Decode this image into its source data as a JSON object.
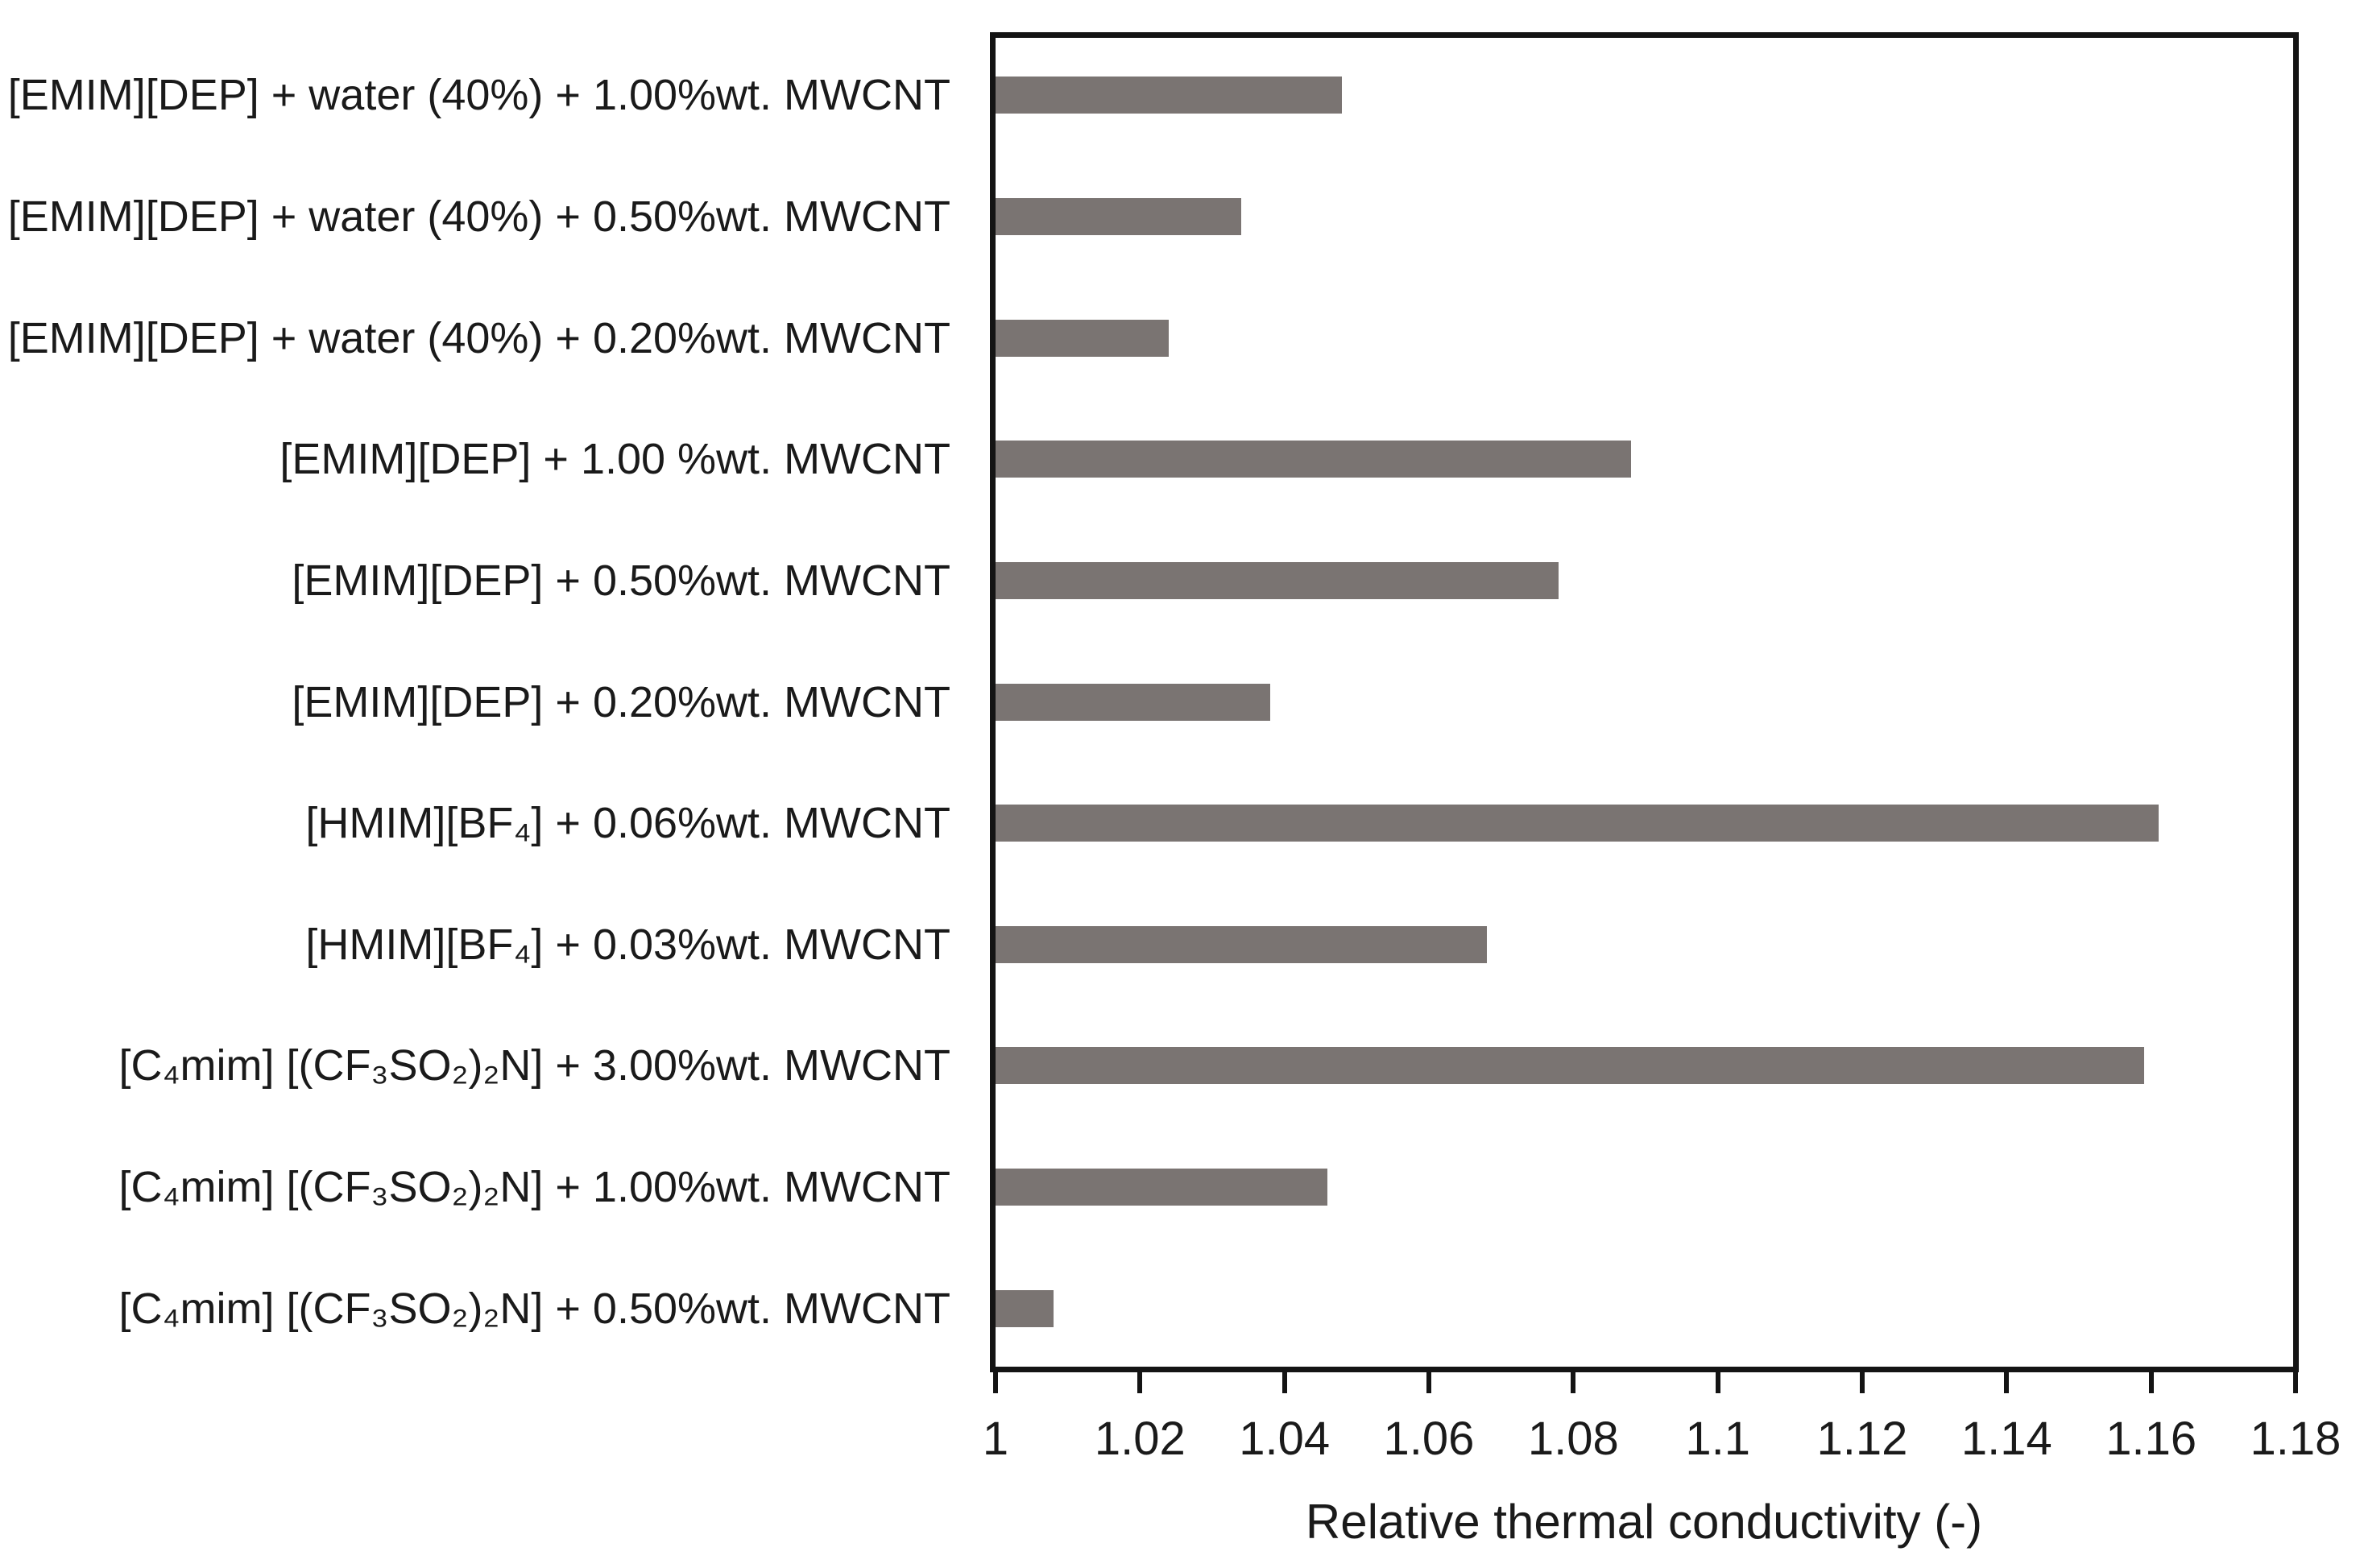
{
  "chart_data": {
    "type": "bar",
    "orientation": "horizontal",
    "title": "",
    "xlabel": "Relative thermal conductivity (-)",
    "ylabel": "",
    "xlim": [
      1,
      1.18
    ],
    "xticks": [
      "1",
      "1.02",
      "1.04",
      "1.06",
      "1.08",
      "1.1",
      "1.12",
      "1.14",
      "1.16",
      "1.18"
    ],
    "xtick_values": [
      1,
      1.02,
      1.04,
      1.06,
      1.08,
      1.1,
      1.12,
      1.14,
      1.16,
      1.18
    ],
    "grid": "off",
    "legend": "none",
    "bar_color": "#7a7472",
    "axis_color": "#141414",
    "categories": [
      "[EMIM][DEP] + water (40%) + 1.00%wt. MWCNT",
      "[EMIM][DEP] + water (40%) + 0.50%wt. MWCNT",
      "[EMIM][DEP] + water (40%) + 0.20%wt. MWCNT",
      "[EMIM][DEP] + 1.00 %wt. MWCNT",
      "[EMIM][DEP] + 0.50%wt. MWCNT",
      "[EMIM][DEP] + 0.20%wt. MWCNT",
      "[HMIM][BF₄] + 0.06%wt. MWCNT",
      "[HMIM][BF₄] + 0.03%wt. MWCNT",
      "[C₄mim] [(CF₃SO₂)₂N] + 3.00%wt. MWCNT",
      "[C₄mim] [(CF₃SO₂)₂N] + 1.00%wt. MWCNT",
      "[C₄mim] [(CF₃SO₂)₂N] + 0.50%wt. MWCNT"
    ],
    "values": [
      1.048,
      1.034,
      1.024,
      1.088,
      1.078,
      1.038,
      1.161,
      1.068,
      1.159,
      1.046,
      1.008
    ]
  }
}
